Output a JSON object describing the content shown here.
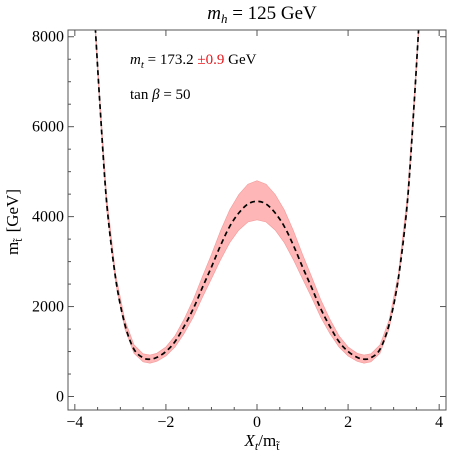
{
  "chart_data": {
    "type": "line",
    "title": {
      "prefix_italic": "m",
      "prefix_sub": "h",
      "text": " = 125 GeV"
    },
    "xlabel": {
      "main": "X",
      "sub": "t",
      "slash": "/m",
      "sub2": "t̃"
    },
    "ylabel": {
      "main": "m",
      "sub": "t̃",
      "unit": "[GeV]"
    },
    "xlim": [
      -4.15,
      4.15
    ],
    "ylim": [
      -300,
      8150
    ],
    "x_ticks": [
      -4,
      -2,
      0,
      2,
      4
    ],
    "x_tick_labels": [
      "−4",
      "−2",
      "0",
      "2",
      "4"
    ],
    "y_ticks": [
      0,
      2000,
      4000,
      6000,
      8000
    ],
    "y_tick_labels": [
      "0",
      "2000",
      "4000",
      "6000",
      "8000"
    ],
    "grid": false,
    "annotations": {
      "mt_prefix": "m",
      "mt_sub": "t",
      "mt_value": " = 173.2 ",
      "mt_error": "±0.9",
      "mt_unit": " GeV",
      "tan_prefix": "tan ",
      "tan_beta": "β",
      "tan_value": " = 50"
    },
    "colors": {
      "band": "#ffb6b6",
      "band_edge": "#f29a9a",
      "line": "#000000",
      "error_text": "#e8161b",
      "frame": "#555555"
    },
    "series": [
      {
        "x": [
          -3.55,
          -3.45,
          -3.3,
          -3.1,
          -2.9,
          -2.7,
          -2.5,
          -2.35,
          -2.2,
          -2.0,
          -1.8,
          -1.6,
          -1.4,
          -1.2,
          -1.0,
          -0.8,
          -0.6,
          -0.4,
          -0.2,
          0.0,
          0.2,
          0.4,
          0.6,
          0.8,
          1.0,
          1.2,
          1.4,
          1.6,
          1.8,
          2.0,
          2.2,
          2.35,
          2.5,
          2.7,
          2.9,
          3.1,
          3.3,
          3.45,
          3.55
        ],
        "y": [
          8200,
          6500,
          4300,
          2600,
          1600,
          1050,
          860,
          830,
          870,
          1000,
          1220,
          1560,
          1950,
          2420,
          2880,
          3360,
          3780,
          4080,
          4280,
          4340,
          4280,
          4080,
          3780,
          3360,
          2880,
          2420,
          1950,
          1560,
          1220,
          1000,
          870,
          830,
          860,
          1050,
          1600,
          2600,
          4300,
          6500,
          8200
        ],
        "y_low": [
          8100,
          6350,
          4150,
          2500,
          1500,
          960,
          770,
          740,
          780,
          900,
          1100,
          1400,
          1760,
          2200,
          2620,
          3040,
          3420,
          3700,
          3880,
          3930,
          3880,
          3700,
          3420,
          3040,
          2620,
          2200,
          1760,
          1400,
          1100,
          900,
          780,
          740,
          770,
          960,
          1500,
          2500,
          4150,
          6350,
          8100
        ],
        "y_high": [
          8300,
          6650,
          4450,
          2700,
          1700,
          1150,
          950,
          920,
          960,
          1100,
          1350,
          1720,
          2150,
          2660,
          3160,
          3690,
          4150,
          4490,
          4720,
          4800,
          4720,
          4490,
          4150,
          3690,
          3160,
          2660,
          2150,
          1720,
          1350,
          1100,
          960,
          920,
          950,
          1150,
          1700,
          2700,
          4450,
          6650,
          8300
        ]
      }
    ]
  }
}
